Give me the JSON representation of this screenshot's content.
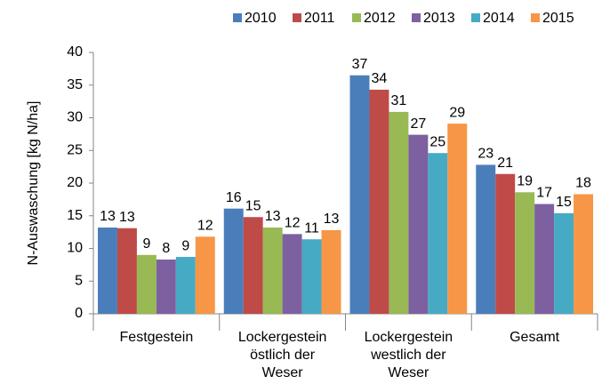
{
  "chart_data": {
    "type": "bar",
    "y_label": "N-Auswaschung [kg N/ha]",
    "categories": [
      "Festgestein",
      "Lockergestein östlich der Weser",
      "Lockergestein westlich der Weser",
      "Gesamt"
    ],
    "series": [
      {
        "name": "2010",
        "color": "#4a7ebb",
        "values": [
          13.2,
          16.1,
          36.5,
          22.8
        ],
        "value_labels": [
          "13",
          "16",
          "37",
          "23"
        ]
      },
      {
        "name": "2011",
        "color": "#be4b48",
        "values": [
          13.1,
          14.8,
          34.3,
          21.4
        ],
        "value_labels": [
          "13",
          "15",
          "34",
          "21"
        ]
      },
      {
        "name": "2012",
        "color": "#98b954",
        "values": [
          9.0,
          13.2,
          30.9,
          18.6
        ],
        "value_labels": [
          "9",
          "13",
          "31",
          "19"
        ]
      },
      {
        "name": "2013",
        "color": "#7d60a0",
        "values": [
          8.3,
          12.2,
          27.4,
          16.8
        ],
        "value_labels": [
          "8",
          "12",
          "27",
          "17"
        ]
      },
      {
        "name": "2014",
        "color": "#46aac5",
        "values": [
          8.7,
          11.4,
          24.6,
          15.4
        ],
        "value_labels": [
          "9",
          "11",
          "25",
          "15"
        ]
      },
      {
        "name": "2015",
        "color": "#f79646",
        "values": [
          11.8,
          12.8,
          29.1,
          18.3
        ],
        "value_labels": [
          "12",
          "13",
          "29",
          "18"
        ]
      }
    ],
    "ylim": [
      0,
      40
    ],
    "yticks": [
      0,
      5,
      10,
      15,
      20,
      25,
      30,
      35,
      40
    ],
    "grid": false,
    "legend": "top"
  }
}
